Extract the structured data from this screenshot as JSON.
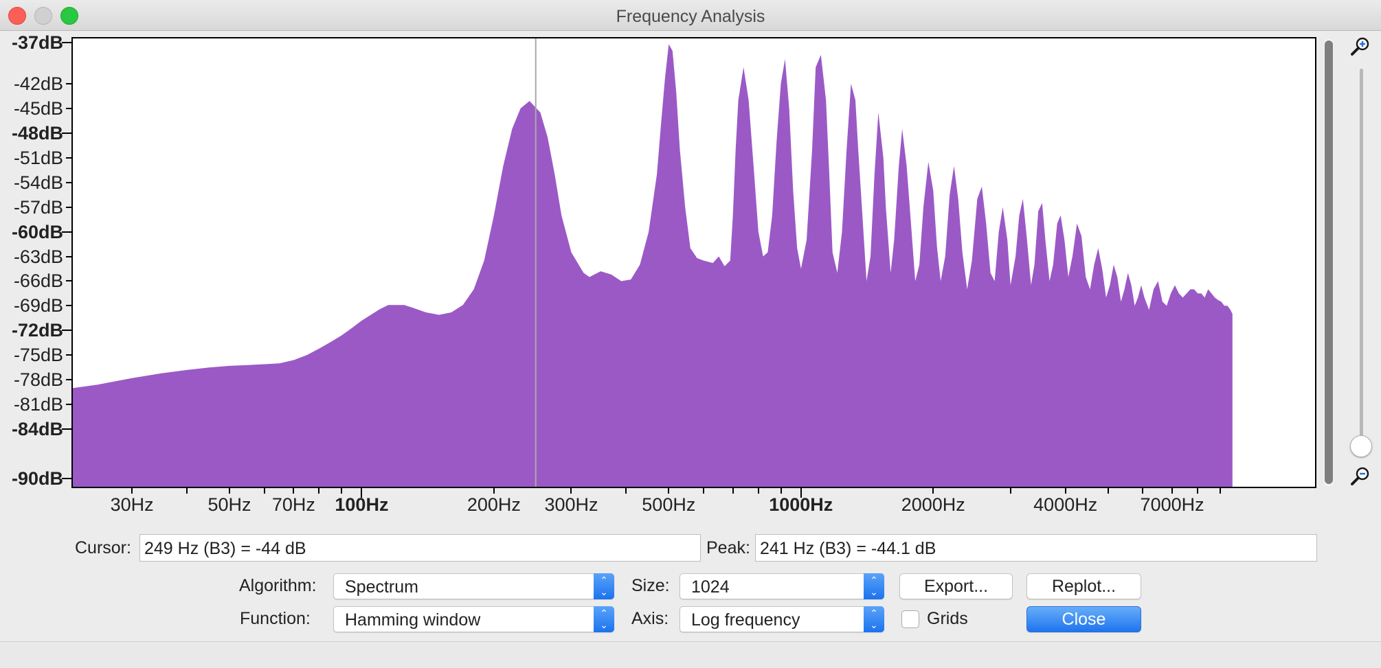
{
  "window": {
    "title": "Frequency Analysis"
  },
  "chart_data": {
    "type": "area",
    "title": "",
    "xscale": "log",
    "xlim": [
      22,
      14800
    ],
    "ylim": [
      -91,
      -36.5
    ],
    "fill_color": "#9b59c6",
    "cursor_line_hz": 249,
    "y_ticks": [
      {
        "label": "-37dB",
        "value": -37,
        "bold": true
      },
      {
        "label": "-42dB",
        "value": -42,
        "bold": false
      },
      {
        "label": "-45dB",
        "value": -45,
        "bold": false
      },
      {
        "label": "-48dB",
        "value": -48,
        "bold": true
      },
      {
        "label": "-51dB",
        "value": -51,
        "bold": false
      },
      {
        "label": "-54dB",
        "value": -54,
        "bold": false
      },
      {
        "label": "-57dB",
        "value": -57,
        "bold": false
      },
      {
        "label": "-60dB",
        "value": -60,
        "bold": true
      },
      {
        "label": "-63dB",
        "value": -63,
        "bold": false
      },
      {
        "label": "-66dB",
        "value": -66,
        "bold": false
      },
      {
        "label": "-69dB",
        "value": -69,
        "bold": false
      },
      {
        "label": "-72dB",
        "value": -72,
        "bold": true
      },
      {
        "label": "-75dB",
        "value": -75,
        "bold": false
      },
      {
        "label": "-78dB",
        "value": -78,
        "bold": false
      },
      {
        "label": "-81dB",
        "value": -81,
        "bold": false
      },
      {
        "label": "-84dB",
        "value": -84,
        "bold": true
      },
      {
        "label": "-90dB",
        "value": -90,
        "bold": true
      }
    ],
    "x_ticks": [
      {
        "label": "30Hz",
        "value": 30,
        "bold": false
      },
      {
        "label": "50Hz",
        "value": 50,
        "bold": false
      },
      {
        "label": "70Hz",
        "value": 70,
        "bold": false
      },
      {
        "label": "100Hz",
        "value": 100,
        "bold": true
      },
      {
        "label": "200Hz",
        "value": 200,
        "bold": false
      },
      {
        "label": "300Hz",
        "value": 300,
        "bold": false
      },
      {
        "label": "500Hz",
        "value": 500,
        "bold": false
      },
      {
        "label": "1000Hz",
        "value": 1000,
        "bold": true
      },
      {
        "label": "2000Hz",
        "value": 2000,
        "bold": false
      },
      {
        "label": "4000Hz",
        "value": 4000,
        "bold": false
      },
      {
        "label": "7000Hz",
        "value": 7000,
        "bold": false
      }
    ],
    "x_minor_ticks": [
      40,
      60,
      80,
      90,
      400,
      600,
      700,
      800,
      900,
      3000,
      5000,
      6000,
      8000,
      9000
    ],
    "spectrum": {
      "hz": [
        22,
        25,
        30,
        35,
        40,
        45,
        50,
        55,
        60,
        65,
        70,
        75,
        80,
        85,
        90,
        95,
        100,
        110,
        115,
        120,
        125,
        130,
        140,
        150,
        160,
        170,
        180,
        190,
        200,
        210,
        220,
        230,
        241,
        255,
        265,
        275,
        285,
        300,
        320,
        330,
        350,
        370,
        390,
        410,
        430,
        450,
        470,
        480,
        490,
        500,
        510,
        520,
        530,
        545,
        560,
        580,
        600,
        630,
        650,
        670,
        690,
        700,
        710,
        720,
        740,
        760,
        780,
        800,
        820,
        840,
        860,
        880,
        900,
        920,
        940,
        960,
        980,
        1000,
        1030,
        1060,
        1080,
        1110,
        1140,
        1160,
        1180,
        1210,
        1240,
        1270,
        1300,
        1330,
        1350,
        1380,
        1410,
        1440,
        1470,
        1500,
        1540,
        1560,
        1600,
        1630,
        1670,
        1700,
        1740,
        1780,
        1820,
        1860,
        1900,
        1950,
        2000,
        2040,
        2080,
        2130,
        2180,
        2230,
        2280,
        2330,
        2390,
        2450,
        2520,
        2580,
        2640,
        2700,
        2760,
        2820,
        2880,
        2950,
        3000,
        3080,
        3140,
        3200,
        3270,
        3340,
        3400,
        3470,
        3540,
        3600,
        3680,
        3750,
        3830,
        3900,
        3980,
        4060,
        4150,
        4250,
        4350,
        4450,
        4550,
        4650,
        4750,
        4850,
        4950,
        5050,
        5150,
        5250,
        5350,
        5450,
        5550,
        5650,
        5750,
        5850,
        5950,
        6050,
        6200,
        6350,
        6500,
        6650,
        6800,
        6950,
        7100,
        7250,
        7400,
        7550,
        7700,
        7850,
        8000,
        8150,
        8300,
        8450,
        8600,
        8750,
        8900,
        9050,
        9200,
        9350,
        9500,
        9600
      ],
      "db": [
        -79,
        -78.6,
        -77.8,
        -77.2,
        -76.8,
        -76.5,
        -76.3,
        -76.2,
        -76.1,
        -76,
        -75.6,
        -75,
        -74.2,
        -73.4,
        -72.6,
        -71.7,
        -70.8,
        -69.4,
        -68.9,
        -68.9,
        -68.9,
        -69.2,
        -69.8,
        -70.1,
        -69.8,
        -68.9,
        -67,
        -63.5,
        -58,
        -52,
        -47.5,
        -45,
        -44.1,
        -45.5,
        -48.5,
        -53,
        -58,
        -62.5,
        -65,
        -65.5,
        -64.8,
        -65.2,
        -66,
        -65.8,
        -64,
        -60,
        -53,
        -47,
        -41.5,
        -37.2,
        -38,
        -43,
        -50,
        -57,
        -62,
        -63.2,
        -63.5,
        -63.8,
        -63,
        -64.2,
        -63.5,
        -58,
        -50,
        -44,
        -40,
        -44,
        -52,
        -60,
        -63,
        -62.5,
        -58,
        -49,
        -42,
        -39,
        -45,
        -55,
        -62,
        -64.5,
        -61,
        -50,
        -40,
        -38.5,
        -44,
        -53,
        -62.5,
        -65,
        -60,
        -50,
        -42,
        -44,
        -50,
        -58,
        -66,
        -63,
        -53,
        -45.5,
        -51,
        -57,
        -65,
        -61,
        -52,
        -47.5,
        -52,
        -59,
        -66,
        -64,
        -57,
        -51.5,
        -55,
        -61.8,
        -66,
        -63,
        -55.5,
        -52,
        -56,
        -62.5,
        -67,
        -63.5,
        -56,
        -54.5,
        -59,
        -65,
        -66,
        -60,
        -57,
        -61,
        -66.5,
        -63,
        -58,
        -56,
        -61,
        -66.5,
        -64,
        -57.5,
        -56.5,
        -61,
        -66,
        -64,
        -59,
        -58,
        -61,
        -65.5,
        -63,
        -59,
        -60.5,
        -65.5,
        -67,
        -64,
        -62,
        -64.5,
        -68,
        -66.5,
        -64,
        -65.5,
        -68.5,
        -67,
        -65,
        -66.5,
        -69,
        -68,
        -66.5,
        -68,
        -69.5,
        -67,
        -66,
        -68.5,
        -69,
        -67.5,
        -66.5,
        -67.5,
        -68,
        -67.5,
        -67,
        -67,
        -67.5,
        -67.5,
        -68,
        -67,
        -67.5,
        -68,
        -68.3,
        -68.5,
        -69,
        -69,
        -69.5,
        -70,
        -70
      ]
    }
  },
  "cursor": {
    "label": "Cursor:",
    "value": "249 Hz (B3) = -44 dB"
  },
  "peak": {
    "label": "Peak:",
    "value": "241 Hz (B3) = -44.1 dB"
  },
  "controls": {
    "algorithm_label": "Algorithm:",
    "algorithm_value": "Spectrum",
    "function_label": "Function:",
    "function_value": "Hamming window",
    "size_label": "Size:",
    "size_value": "1024",
    "axis_label": "Axis:",
    "axis_value": "Log frequency",
    "grids_label": "Grids",
    "grids_checked": false,
    "export_label": "Export...",
    "replot_label": "Replot...",
    "close_label": "Close"
  }
}
